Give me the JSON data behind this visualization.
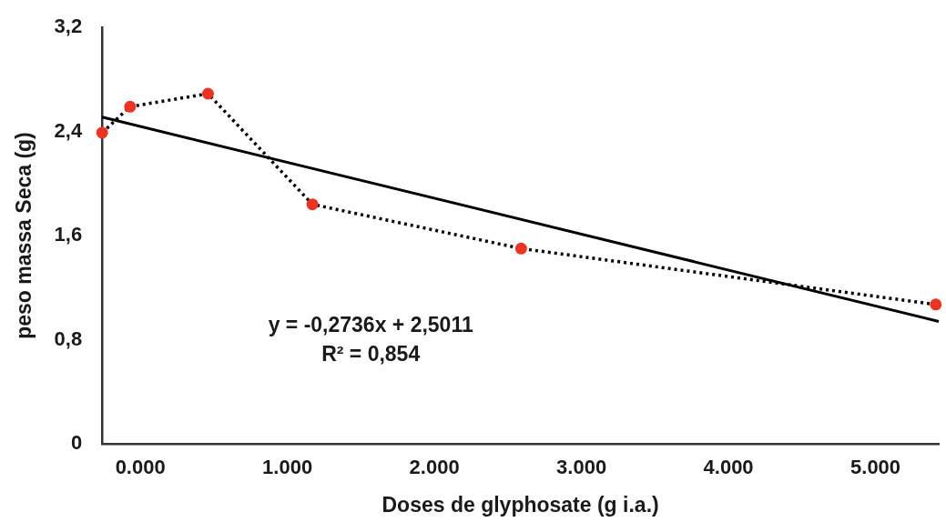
{
  "chart_data": {
    "type": "line",
    "xlabel": "Doses de glyphosate (g i.a.)",
    "ylabel": "peso massa Seca (g)",
    "x": [
      -260,
      -70,
      460,
      1170,
      2590,
      5410
    ],
    "series": [
      {
        "color": "#000000",
        "values": [
          2.39,
          2.59,
          2.69,
          1.84,
          1.5,
          1.07
        ],
        "line_style": "dotted",
        "marker": "none"
      },
      {
        "type": "scatter",
        "color": "#ee3322",
        "values": [
          2.39,
          2.59,
          2.69,
          1.84,
          1.5,
          1.07
        ],
        "marker": "circle"
      },
      {
        "color": "#000000",
        "x": [
          -260,
          5430
        ],
        "values": [
          2.51,
          0.94
        ],
        "line_style": "solid",
        "marker": "none"
      }
    ],
    "xlim": [
      -260,
      5430
    ],
    "xticks": [
      {
        "value": 0,
        "label": "0.000"
      },
      {
        "value": 1000,
        "label": "1.000"
      },
      {
        "value": 2000,
        "label": "2.000"
      },
      {
        "value": 3000,
        "label": "3.000"
      },
      {
        "value": 4000,
        "label": "4.000"
      },
      {
        "value": 5000,
        "label": "5.000"
      }
    ],
    "ylim": [
      0,
      3.2
    ],
    "yticks": [
      {
        "value": 0,
        "label": "0"
      },
      {
        "value": 0.8,
        "label": "0,8"
      },
      {
        "value": 1.6,
        "label": "1,6"
      },
      {
        "value": 2.4,
        "label": "2,4"
      },
      {
        "value": 3.2,
        "label": "3,2"
      }
    ],
    "grid": false,
    "legend": false,
    "annotations": [
      "y = -0,2736x + 2,5011",
      "R² = 0,854"
    ]
  }
}
